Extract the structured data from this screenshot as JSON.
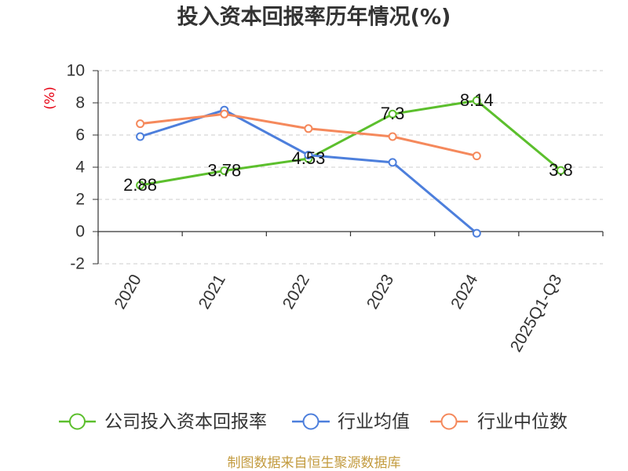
{
  "chart_data": {
    "type": "line",
    "title": "投入资本回报率历年情况(%)",
    "xlabel": "",
    "ylabel": "(%)",
    "categories": [
      "2020",
      "2021",
      "2022",
      "2023",
      "2024",
      "2025Q1-Q3"
    ],
    "ylim": [
      -2,
      10
    ],
    "yticks": [
      10,
      8,
      6,
      4,
      2,
      0,
      -2
    ],
    "grid": true,
    "legend_position": "bottom",
    "series": [
      {
        "name": "公司投入资本回报率",
        "color": "#5cbf2d",
        "show_labels": true,
        "values": [
          2.88,
          3.78,
          4.53,
          7.3,
          8.14,
          3.8
        ]
      },
      {
        "name": "行业均值",
        "color": "#4d7fdc",
        "show_labels": false,
        "values": [
          5.9,
          7.55,
          4.75,
          4.3,
          -0.1,
          null
        ]
      },
      {
        "name": "行业中位数",
        "color": "#f5895c",
        "show_labels": false,
        "values": [
          6.7,
          7.3,
          6.4,
          5.9,
          4.7,
          null
        ]
      }
    ]
  },
  "source_note": "制图数据来自恒生聚源数据库",
  "colors": {
    "y_axis_label": "#e60012",
    "source_note": "#c39b3f",
    "grid": "#cccccc",
    "axis": "#333333"
  }
}
